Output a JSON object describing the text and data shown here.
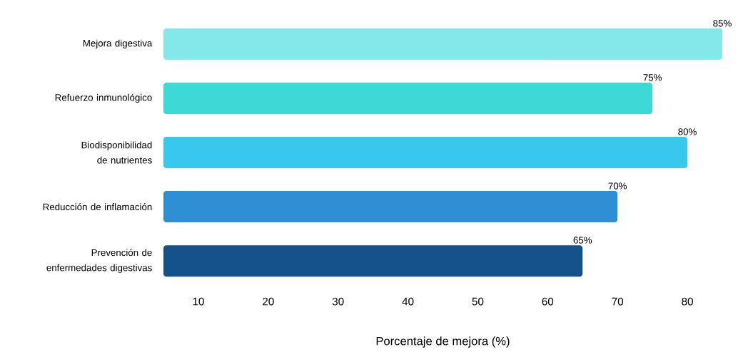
{
  "chart_data": {
    "type": "bar",
    "orientation": "horizontal",
    "xlabel": "Porcentaje de mejora (%)",
    "categories": [
      "Mejora digestiva",
      "Refuerzo inmunológico",
      "Biodisponibilidad de nutrientes",
      "Reducción de inflamación",
      "Prevención de enfermedades digestivas"
    ],
    "values": [
      85,
      75,
      80,
      70,
      65
    ],
    "value_labels": [
      "85%",
      "75%",
      "80%",
      "70%",
      "65%"
    ],
    "colors": [
      "#84e8e8",
      "#3dd9d6",
      "#38c8ee",
      "#2e8fd4",
      "#16528a"
    ],
    "xlim": [
      5,
      85
    ],
    "xticks": [
      10,
      20,
      30,
      40,
      50,
      60,
      70,
      80
    ]
  }
}
